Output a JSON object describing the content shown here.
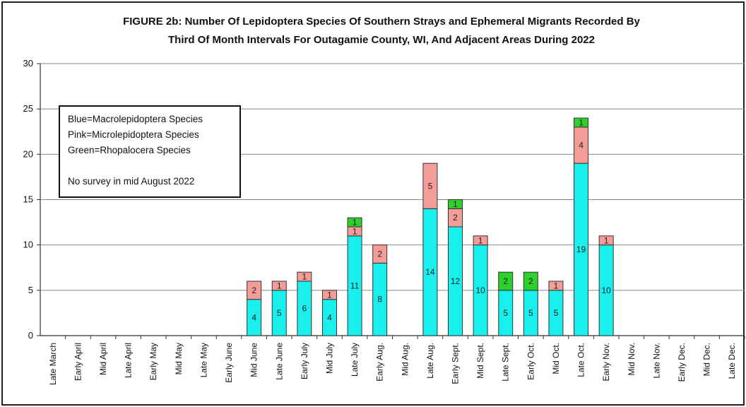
{
  "chart_data": {
    "type": "bar",
    "stacked": true,
    "title_line1": "FIGURE 2b: Number Of Lepidoptera Species Of Southern Strays and Ephemeral Migrants Recorded By",
    "title_line2": "Third Of Month Intervals For Outagamie County, WI, And Adjacent Areas During 2022",
    "ylim": [
      0,
      30
    ],
    "yticks": [
      "0",
      "5",
      "10",
      "15",
      "20",
      "25",
      "30"
    ],
    "grid": true,
    "categories": [
      "Late March",
      "Early April",
      "Mid April",
      "Late April",
      "Early May",
      "Mid May",
      "Late May",
      "Early June",
      "Mid June",
      "Late June",
      "Early July",
      "Mid July",
      "Late July",
      "Early Aug.",
      "Mid Aug.",
      "Late Aug.",
      "Early Sept.",
      "Mid Sept.",
      "Late Sept.",
      "Early Oct.",
      "Mid Oct.",
      "Late Oct.",
      "Early Nov.",
      "Mid Nov.",
      "Late Nov.",
      "Early Dec.",
      "Mid Dec.",
      "Late Dec."
    ],
    "series": [
      {
        "key": "macro",
        "color": "#19f0ee",
        "values": [
          0,
          0,
          0,
          0,
          0,
          0,
          0,
          0,
          4,
          5,
          6,
          4,
          11,
          8,
          0,
          14,
          12,
          10,
          5,
          5,
          5,
          19,
          10,
          0,
          0,
          0,
          0,
          0
        ]
      },
      {
        "key": "micro",
        "color": "#f49c98",
        "values": [
          0,
          0,
          0,
          0,
          0,
          0,
          0,
          0,
          2,
          1,
          1,
          1,
          1,
          2,
          0,
          5,
          2,
          1,
          0,
          0,
          1,
          4,
          1,
          0,
          0,
          0,
          0,
          0
        ]
      },
      {
        "key": "rhopalo",
        "color": "#2ed02e",
        "values": [
          0,
          0,
          0,
          0,
          0,
          0,
          0,
          0,
          0,
          0,
          0,
          0,
          1,
          0,
          0,
          0,
          1,
          0,
          2,
          2,
          0,
          1,
          0,
          0,
          0,
          0,
          0,
          0
        ]
      }
    ],
    "legend": {
      "placement": "top-left",
      "lines": [
        "Blue=Macrolepidoptera Species",
        "Pink=Microlepidoptera Species",
        "Green=Rhopalocera Species",
        "",
        "No survey in mid August 2022"
      ]
    }
  }
}
